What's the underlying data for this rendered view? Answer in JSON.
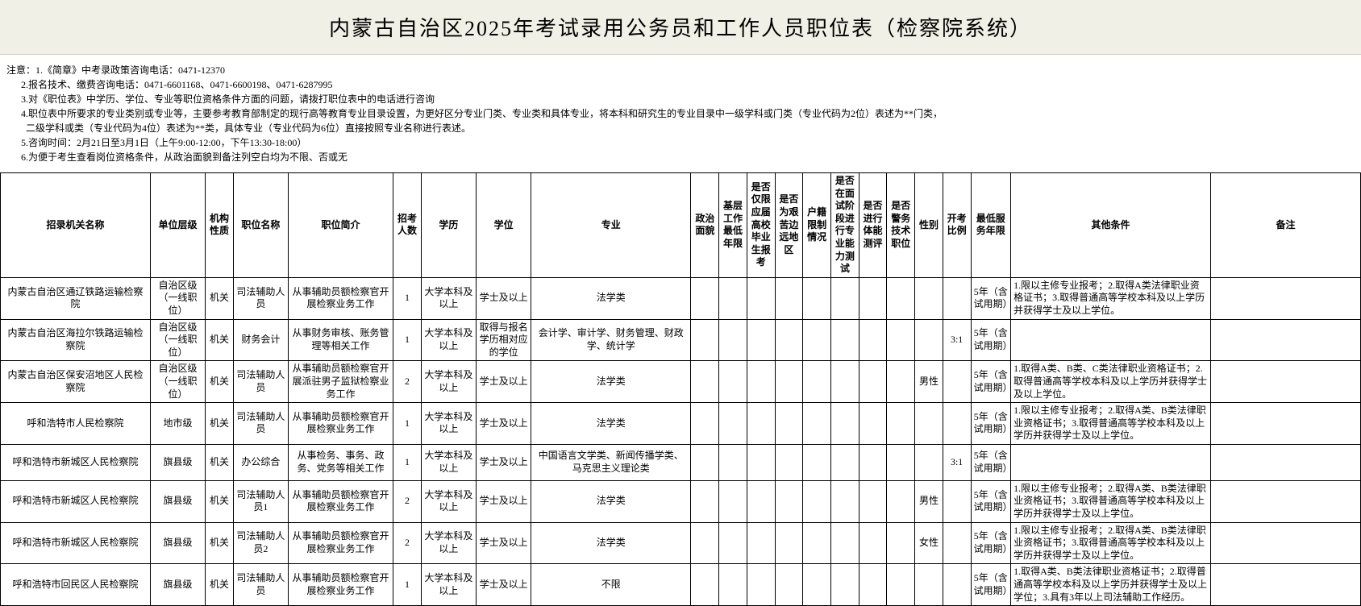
{
  "title": "内蒙古自治区2025年考试录用公务员和工作人员职位表（检察院系统）",
  "notes": [
    "注意：1.《简章》中考录政策咨询电话：0471-12370",
    "      2.报名技术、缴费咨询电话：0471-6601168、0471-6600198、0471-6287995",
    "      3.对《职位表》中学历、学位、专业等职位资格条件方面的问题，请拨打职位表中的电话进行咨询",
    "      4.职位表中所要求的专业类别或专业等，主要参考教育部制定的现行高等教育专业目录设置，为更好区分专业门类、专业类和具体专业，将本科和研究生的专业目录中一级学科或门类（专业代码为2位）表述为**门类，",
    "        二级学科或类（专业代码为4位）表述为**类，具体专业（专业代码为6位）直接按照专业名称进行表述。",
    "      5.咨询时间：2月21日至3月1日（上午9:00-12:00，下午13:30-18:00）",
    "      6.为便于考生查看岗位资格条件，从政治面貌到备注列空白均为不限、否或无"
  ],
  "headers": {
    "org": "招录机关名称",
    "level": "单位层级",
    "nature": "机构性质",
    "posname": "职位名称",
    "posdesc": "职位简介",
    "count": "招考人数",
    "edu": "学历",
    "degree": "学位",
    "major": "专业",
    "political": "政治面貌",
    "baseexp": "基层工作最低年限",
    "fresh": "是否仅限应届高校毕业生报考",
    "remote": "是否为艰苦边远地区",
    "household": "户籍限制情况",
    "interview": "是否在面试阶段进行专业能力测试",
    "physical": "是否进行体能测评",
    "police": "是否警务技术职位",
    "gender": "性别",
    "ratio": "开考比例",
    "minservice": "最低服务年限",
    "other": "其他条件",
    "remark": "备注"
  },
  "rows": [
    {
      "org": "内蒙古自治区通辽铁路运输检察院",
      "level": "自治区级（一线职位）",
      "nature": "机关",
      "posname": "司法辅助人员",
      "posdesc": "从事辅助员额检察官开展检察业务工作",
      "count": "1",
      "edu": "大学本科及以上",
      "degree": "学士及以上",
      "major": "法学类",
      "political": "",
      "baseexp": "",
      "fresh": "",
      "remote": "",
      "household": "",
      "interview": "",
      "physical": "",
      "police": "",
      "gender": "",
      "ratio": "",
      "minservice": "5年（含试用期）",
      "other": "1.限以主修专业报考；2.取得A类法律职业资格证书；3.取得普通高等学校本科及以上学历并获得学士及以上学位。",
      "remark": ""
    },
    {
      "org": "内蒙古自治区海拉尔铁路运输检察院",
      "level": "自治区级（一线职位）",
      "nature": "机关",
      "posname": "财务会计",
      "posdesc": "从事财务审核、账务管理等相关工作",
      "count": "1",
      "edu": "大学本科及以上",
      "degree": "取得与报名学历相对应的学位",
      "major": "会计学、审计学、财务管理、财政学、统计学",
      "political": "",
      "baseexp": "",
      "fresh": "",
      "remote": "",
      "household": "",
      "interview": "",
      "physical": "",
      "police": "",
      "gender": "",
      "ratio": "3:1",
      "minservice": "5年（含试用期）",
      "other": "",
      "remark": ""
    },
    {
      "org": "内蒙古自治区保安沼地区人民检察院",
      "level": "自治区级（一线职位）",
      "nature": "机关",
      "posname": "司法辅助人员",
      "posdesc": "从事辅助员额检察官开展派驻男子监狱检察业务工作",
      "count": "2",
      "edu": "大学本科及以上",
      "degree": "学士及以上",
      "major": "法学类",
      "political": "",
      "baseexp": "",
      "fresh": "",
      "remote": "",
      "household": "",
      "interview": "",
      "physical": "",
      "police": "",
      "gender": "男性",
      "ratio": "",
      "minservice": "5年（含试用期）",
      "other": "1.取得A类、B类、C类法律职业资格证书；2.取得普通高等学校本科及以上学历并获得学士及以上学位。",
      "remark": ""
    },
    {
      "org": "呼和浩特市人民检察院",
      "level": "地市级",
      "nature": "机关",
      "posname": "司法辅助人员",
      "posdesc": "从事辅助员额检察官开展检察业务工作",
      "count": "1",
      "edu": "大学本科及以上",
      "degree": "学士及以上",
      "major": "法学类",
      "political": "",
      "baseexp": "",
      "fresh": "",
      "remote": "",
      "household": "",
      "interview": "",
      "physical": "",
      "police": "",
      "gender": "",
      "ratio": "",
      "minservice": "5年（含试用期）",
      "other": "1.限以主修专业报考；2.取得A类、B类法律职业资格证书；3.取得普通高等学校本科及以上学历并获得学士及以上学位。",
      "remark": ""
    },
    {
      "org": "呼和浩特市新城区人民检察院",
      "level": "旗县级",
      "nature": "机关",
      "posname": "办公综合",
      "posdesc": "从事检务、事务、政务、党务等相关工作",
      "count": "1",
      "edu": "大学本科及以上",
      "degree": "学士及以上",
      "major": "中国语言文学类、新闻传播学类、马克思主义理论类",
      "political": "",
      "baseexp": "",
      "fresh": "",
      "remote": "",
      "household": "",
      "interview": "",
      "physical": "",
      "police": "",
      "gender": "",
      "ratio": "3:1",
      "minservice": "5年（含试用期）",
      "other": "",
      "remark": ""
    },
    {
      "org": "呼和浩特市新城区人民检察院",
      "level": "旗县级",
      "nature": "机关",
      "posname": "司法辅助人员1",
      "posdesc": "从事辅助员额检察官开展检察业务工作",
      "count": "2",
      "edu": "大学本科及以上",
      "degree": "学士及以上",
      "major": "法学类",
      "political": "",
      "baseexp": "",
      "fresh": "",
      "remote": "",
      "household": "",
      "interview": "",
      "physical": "",
      "police": "",
      "gender": "男性",
      "ratio": "",
      "minservice": "5年（含试用期）",
      "other": "1.限以主修专业报考；2.取得A类、B类法律职业资格证书；3.取得普通高等学校本科及以上学历并获得学士及以上学位。",
      "remark": ""
    },
    {
      "org": "呼和浩特市新城区人民检察院",
      "level": "旗县级",
      "nature": "机关",
      "posname": "司法辅助人员2",
      "posdesc": "从事辅助员额检察官开展检察业务工作",
      "count": "2",
      "edu": "大学本科及以上",
      "degree": "学士及以上",
      "major": "法学类",
      "political": "",
      "baseexp": "",
      "fresh": "",
      "remote": "",
      "household": "",
      "interview": "",
      "physical": "",
      "police": "",
      "gender": "女性",
      "ratio": "",
      "minservice": "5年（含试用期）",
      "other": "1.限以主修专业报考；2.取得A类、B类法律职业资格证书；3.取得普通高等学校本科及以上学历并获得学士及以上学位。",
      "remark": ""
    },
    {
      "org": "呼和浩特市回民区人民检察院",
      "level": "旗县级",
      "nature": "机关",
      "posname": "司法辅助人员",
      "posdesc": "从事辅助员额检察官开展检察业务工作",
      "count": "1",
      "edu": "大学本科及以上",
      "degree": "学士及以上",
      "major": "不限",
      "political": "",
      "baseexp": "",
      "fresh": "",
      "remote": "",
      "household": "",
      "interview": "",
      "physical": "",
      "police": "",
      "gender": "",
      "ratio": "",
      "minservice": "5年（含试用期）",
      "other": "1.取得A类、B类法律职业资格证书；2.取得普通高等学校本科及以上学历并获得学士及以上学位；3.具有3年以上司法辅助工作经历。",
      "remark": ""
    }
  ]
}
